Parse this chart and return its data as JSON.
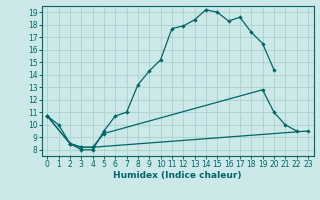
{
  "xlabel": "Humidex (Indice chaleur)",
  "bg_color": "#cce8e8",
  "line_color": "#006666",
  "grid_color": "#b0d4d4",
  "xlim": [
    -0.5,
    23.5
  ],
  "ylim": [
    7.5,
    19.5
  ],
  "xticks": [
    0,
    1,
    2,
    3,
    4,
    5,
    6,
    7,
    8,
    9,
    10,
    11,
    12,
    13,
    14,
    15,
    16,
    17,
    18,
    19,
    20,
    21,
    22,
    23
  ],
  "yticks": [
    8,
    9,
    10,
    11,
    12,
    13,
    14,
    15,
    16,
    17,
    18,
    19
  ],
  "line1_x": [
    0,
    1,
    2,
    3,
    4,
    5,
    6,
    7,
    8,
    9,
    10,
    11,
    12,
    13,
    14,
    15,
    16,
    17,
    18,
    19,
    20
  ],
  "line1_y": [
    10.7,
    10.0,
    8.5,
    8.0,
    8.0,
    9.5,
    10.7,
    11.0,
    13.2,
    14.3,
    15.2,
    17.7,
    17.9,
    18.4,
    19.2,
    19.0,
    18.3,
    18.6,
    17.4,
    16.5,
    14.4
  ],
  "line2_x": [
    0,
    2,
    3,
    4,
    5,
    19,
    20,
    21,
    22
  ],
  "line2_y": [
    10.7,
    8.5,
    8.2,
    8.2,
    9.3,
    12.8,
    11.0,
    10.0,
    9.5
  ],
  "line3_x": [
    0,
    2,
    3,
    4,
    23
  ],
  "line3_y": [
    10.7,
    8.5,
    8.2,
    8.2,
    9.5
  ]
}
